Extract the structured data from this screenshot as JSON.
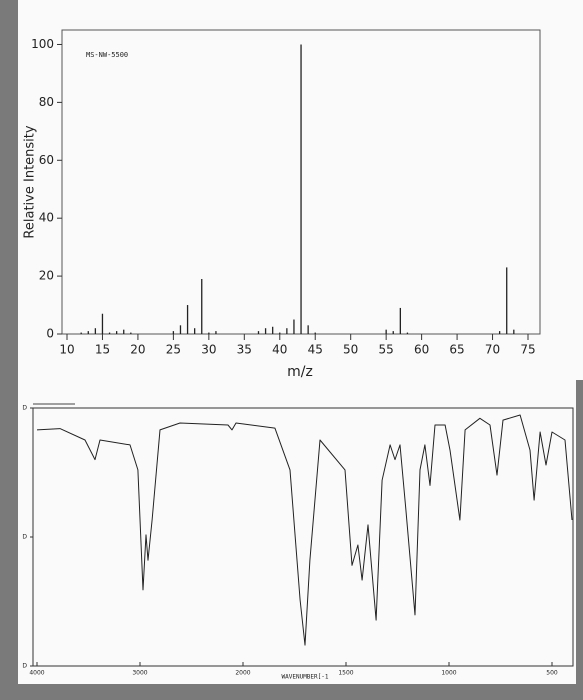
{
  "chart_data": [
    {
      "type": "bar",
      "annotation": "MS-NW-5500",
      "xlabel": "m/z",
      "ylabel": "Relative Intensity",
      "x": [
        12,
        13,
        14,
        15,
        16,
        17,
        18,
        19,
        25,
        26,
        27,
        28,
        29,
        30,
        31,
        37,
        38,
        39,
        40,
        41,
        42,
        43,
        44,
        45,
        55,
        56,
        57,
        58,
        71,
        72,
        73
      ],
      "values": [
        0.5,
        1,
        2,
        7,
        0.5,
        1,
        1.5,
        0.5,
        1,
        3,
        10,
        2,
        19,
        0.5,
        1,
        1,
        2,
        2.5,
        0.5,
        2,
        5,
        100,
        3,
        0.5,
        1.5,
        1,
        9,
        0.5,
        1,
        23,
        1.5
      ],
      "color": "#222222",
      "xlim": [
        10,
        76
      ],
      "xticks": [
        10,
        15,
        20,
        25,
        30,
        35,
        40,
        45,
        50,
        55,
        60,
        65,
        70,
        75
      ],
      "ylim": [
        0,
        105
      ],
      "yticks": [
        0,
        20,
        40,
        60,
        80,
        100
      ]
    },
    {
      "type": "line",
      "xlabel": "WAVENUMBER[-1",
      "x": [
        4000,
        3777,
        3534,
        3437,
        3388,
        3097,
        3020,
        2971,
        2942,
        2922,
        2883,
        2806,
        2612,
        2146,
        2107,
        2068,
        1845,
        1772,
        1723,
        1699,
        1675,
        1626,
        1505,
        1471,
        1442,
        1422,
        1393,
        1354,
        1325,
        1286,
        1262,
        1238,
        1209,
        1165,
        1141,
        1117,
        1092,
        1068,
        1019,
        995,
        947,
        922,
        850,
        801,
        767,
        738,
        655,
        607,
        587,
        558,
        529,
        500,
        437,
        403
      ],
      "values": [
        91.5,
        92,
        87.6,
        80,
        87.6,
        85.7,
        76,
        29.5,
        50.8,
        41,
        56.6,
        91.5,
        94.2,
        93.4,
        91.5,
        94.2,
        92.2,
        76,
        25.6,
        8.1,
        41,
        87.6,
        76,
        39,
        46.9,
        33.3,
        54.7,
        17.8,
        72,
        85.7,
        80,
        85.7,
        60.5,
        19.8,
        76,
        85.7,
        70,
        93.4,
        93.4,
        83.7,
        56.6,
        91.5,
        96,
        93.4,
        74,
        95.3,
        97.3,
        83.7,
        64.3,
        90.7,
        77.9,
        90.7,
        87.6,
        56.6
      ],
      "color": "#222222",
      "xlim": [
        4000,
        400
      ],
      "xticks": [
        4000,
        3000,
        2000,
        1500,
        1000,
        500
      ],
      "ylim": [
        0,
        100
      ],
      "yticks": [
        {
          "value": 0,
          "label": "D"
        },
        {
          "value": 50,
          "label": "D"
        },
        {
          "value": 100,
          "label": "D"
        }
      ]
    }
  ]
}
